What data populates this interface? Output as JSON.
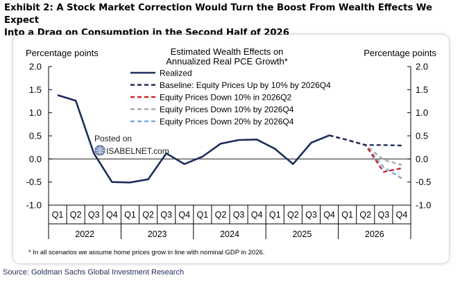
{
  "header": {
    "title_line1": "Exhibit 2: A Stock Market Correction Would Turn the Boost From Wealth Effects We Expect",
    "title_line2": "Into a Drag on Consumption in the Second Half of 2026"
  },
  "footer": {
    "source": "Source: Goldman Sachs Global Investment Research"
  },
  "watermark": {
    "line1": "Posted on",
    "line2": "ISABELNET.com"
  },
  "chart_data": {
    "type": "line",
    "title": "Estimated Wealth Effects on",
    "subtitle": "Annualized Real PCE Growth*",
    "ylabel_left": "Percentage points",
    "ylabel_right": "Percentage points",
    "ylim": [
      -1.0,
      2.0
    ],
    "yticks": [
      -1.0,
      -0.5,
      0.0,
      0.5,
      1.0,
      1.5,
      2.0
    ],
    "ytick_labels": [
      "-1.0",
      "-0.5",
      "0.0",
      "0.5",
      "1.0",
      "1.5",
      "2.0"
    ],
    "quarters": [
      "Q1",
      "Q2",
      "Q3",
      "Q4",
      "Q1",
      "Q2",
      "Q3",
      "Q4",
      "Q1",
      "Q2",
      "Q3",
      "Q4",
      "Q1",
      "Q2",
      "Q3",
      "Q4",
      "Q1",
      "Q2",
      "Q3",
      "Q4"
    ],
    "years": [
      "2022",
      "2023",
      "2024",
      "2025",
      "2026"
    ],
    "footnote": "* In all scenarios we assume home prices grow in line with nominal GDP in 2026.",
    "colors": {
      "realized": "#1c2d5c",
      "baseline": "#1c2d5c",
      "down10_q2": "#c8242b",
      "down10_q4": "#a9a9a9",
      "down20_q4": "#7fa7d4"
    },
    "series": [
      {
        "name": "Realized",
        "style": "solid",
        "start_index": 0,
        "values": [
          1.38,
          1.26,
          0.12,
          -0.5,
          -0.51,
          -0.44,
          0.12,
          -0.11,
          0.05,
          0.33,
          0.41,
          0.42,
          0.22,
          -0.11,
          0.35,
          0.51
        ]
      },
      {
        "name": "Baseline: Equity Prices Up by 10% by 2026Q4",
        "style": "dashed",
        "start_index": 15,
        "values": [
          0.51,
          0.41,
          0.3,
          0.3,
          0.29
        ]
      },
      {
        "name": "Equity Prices Down 10% in 2026Q2",
        "style": "dashed",
        "start_index": 15,
        "values": [
          0.51,
          0.41,
          0.3,
          -0.28,
          -0.2
        ]
      },
      {
        "name": "Equity Prices Down 10% by 2026Q4",
        "style": "dashed",
        "start_index": 15,
        "values": [
          0.51,
          0.41,
          0.3,
          -0.02,
          -0.13
        ]
      },
      {
        "name": "Equity Prices Down 20% by 2026Q4",
        "style": "dashed",
        "start_index": 15,
        "values": [
          0.51,
          0.41,
          0.3,
          -0.18,
          -0.42
        ]
      }
    ]
  }
}
